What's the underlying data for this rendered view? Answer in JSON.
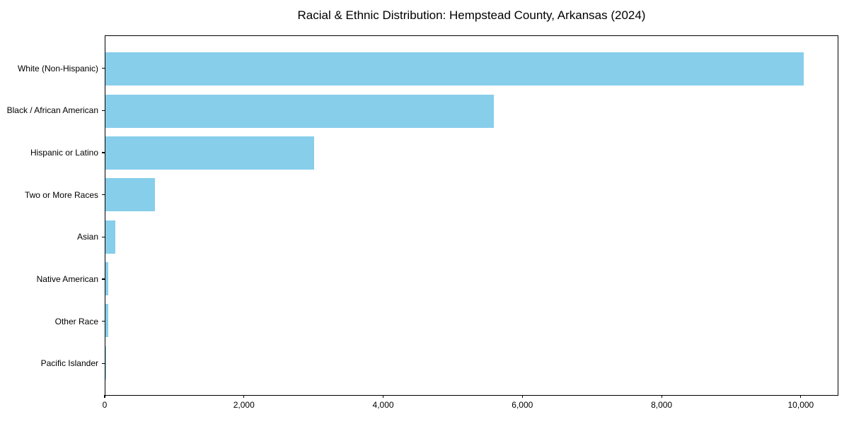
{
  "chart_data": {
    "type": "bar",
    "orientation": "horizontal",
    "title": "Racial & Ethnic Distribution: Hempstead County, Arkansas (2024)",
    "categories": [
      "White (Non-Hispanic)",
      "Black / African American",
      "Hispanic or Latino",
      "Two or More Races",
      "Asian",
      "Native American",
      "Other Race",
      "Pacific Islander"
    ],
    "values": [
      10050,
      5590,
      3000,
      715,
      140,
      45,
      40,
      5
    ],
    "xlabel": "",
    "ylabel": "",
    "xlim": [
      0,
      10540
    ],
    "xticks": [
      0,
      2000,
      4000,
      6000,
      8000,
      10000
    ],
    "xtick_labels": [
      "0",
      "2,000",
      "4,000",
      "6,000",
      "8,000",
      "10,000"
    ],
    "bar_color": "#87CEEB",
    "axis_color": "#000000",
    "background_color": "#ffffff",
    "grid": false,
    "legend": null,
    "bar_height_fraction": 0.8
  }
}
